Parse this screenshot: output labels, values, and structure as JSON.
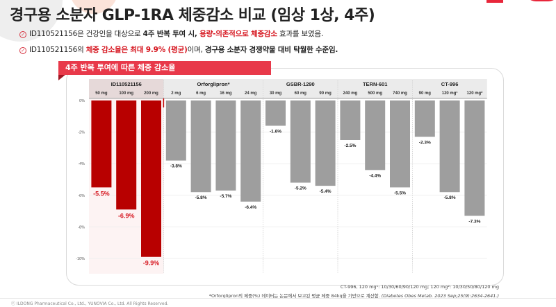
{
  "title": "경구용 소분자 GLP-1RA 체중감소 비교 (임상 1상, 4주)",
  "bullets": [
    {
      "icon": "check-circle-icon",
      "parts": [
        {
          "text": "ID110521156은 건강인을 대상으로 ",
          "style": "normal"
        },
        {
          "text": "4주 반복 투여 시",
          "style": "bold"
        },
        {
          "text": ", ",
          "style": "bold"
        },
        {
          "text": "용량-의존적으로 체중감소",
          "style": "red"
        },
        {
          "text": " 효과를 보였음.",
          "style": "normal"
        }
      ]
    },
    {
      "icon": "check-circle-icon",
      "parts": [
        {
          "text": "ID110521156의 ",
          "style": "normal"
        },
        {
          "text": "체중 감소율은 최대 9.9% (평균)",
          "style": "red"
        },
        {
          "text": "이며, ",
          "style": "normal"
        },
        {
          "text": "경구용 소분자 경쟁약물 대비 탁월한 수준임.",
          "style": "bold"
        }
      ]
    }
  ],
  "chart_panel_title": "4주 반복 투여에 따른 체중 감소율",
  "chart_data": {
    "type": "bar",
    "title": "4주 반복 투여에 따른 체중 감소율",
    "xlabel": "",
    "ylabel": "",
    "ylim": [
      -11,
      0
    ],
    "yticks": [
      0,
      -2,
      -4,
      -6,
      -8,
      -10
    ],
    "ytick_labels": [
      "0%",
      "-2%",
      "-4%",
      "-6%",
      "-8%",
      "-10%"
    ],
    "grid": true,
    "groups": [
      {
        "name": "ID110521156",
        "highlight": true,
        "color": "#b80000",
        "label_color": "#d6151e",
        "doses": [
          "50 mg",
          "100 mg",
          "200 mg"
        ],
        "values": [
          -5.5,
          -6.9,
          -9.9
        ],
        "labels": [
          "-5.5%",
          "-6.9%",
          "-9.9%"
        ]
      },
      {
        "name": "Orforglipron*",
        "highlight": false,
        "color": "#9e9e9e",
        "label_color": "#222222",
        "doses": [
          "2 mg",
          "6 mg",
          "16 mg",
          "24 mg"
        ],
        "values": [
          -3.8,
          -5.8,
          -5.7,
          -6.4
        ],
        "labels": [
          "-3.8%",
          "-5.8%",
          "-5.7%",
          "-6.4%"
        ]
      },
      {
        "name": "GSBR-1290",
        "highlight": false,
        "color": "#9e9e9e",
        "label_color": "#222222",
        "doses": [
          "30 mg",
          "60 mg",
          "90 mg"
        ],
        "values": [
          -1.6,
          -5.2,
          -5.4
        ],
        "labels": [
          "-1.6%",
          "-5.2%",
          "-5.4%"
        ]
      },
      {
        "name": "TERN-601",
        "highlight": false,
        "color": "#9e9e9e",
        "label_color": "#222222",
        "doses": [
          "240 mg",
          "500 mg",
          "740 mg"
        ],
        "values": [
          -2.5,
          -4.4,
          -5.5
        ],
        "labels": [
          "-2.5%",
          "-4.4%",
          "-5.5%"
        ]
      },
      {
        "name": "CT-996",
        "highlight": false,
        "color": "#9e9e9e",
        "label_color": "#222222",
        "doses": [
          "90 mg",
          "120 mg¹",
          "120 mg²"
        ],
        "values": [
          -2.3,
          -5.8,
          -7.3
        ],
        "labels": [
          "-2.3%",
          "-5.8%",
          "-7.3%"
        ]
      }
    ]
  },
  "footnotes": {
    "line1": "CT-996, 120 mg¹: 10/30/60/90/120 mg; 120 mg²: 10/30/50/80/120 mg",
    "line2_main": "*Orforglipron의 체중(%) 데이터는 논문에서 보고된 평균 체중 84kg을 기반으로 계산함. ",
    "line2_citation": "(Diabetes Obes Metab. 2023 Sep;25(9):2634-2641.)"
  },
  "copyright": "ⓒ ILDONG Pharmaceutical Co., Ltd., YUNOVIA Co., Ltd. All Rights Reserved.",
  "colors": {
    "accent_red": "#e8394a",
    "highlight_bar": "#b80000",
    "comparator_bar": "#9e9e9e",
    "highlight_bg": "#fdf3f3",
    "header_bg": "#ebebeb",
    "header_bg_highlight": "#e6d9d9"
  }
}
